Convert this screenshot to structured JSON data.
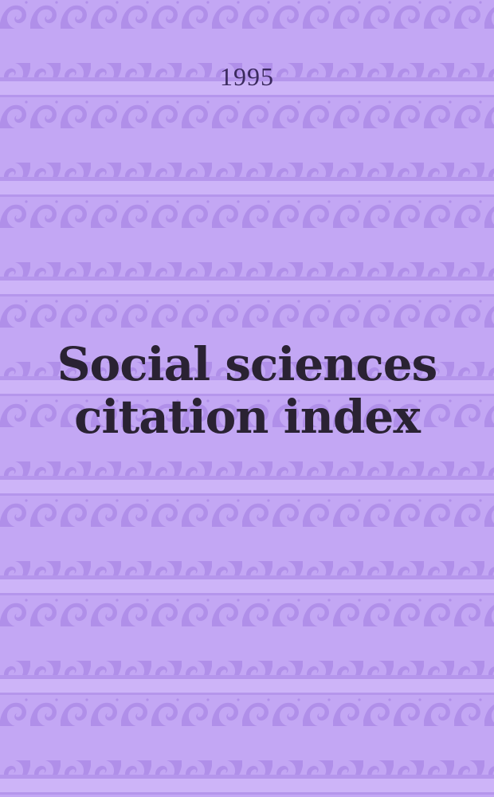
{
  "cover": {
    "year": "1995",
    "title_line1": "Social sciences",
    "title_line2": "citation index"
  },
  "colors": {
    "background": "#c3a7f4",
    "wave": "#b08fe9",
    "stripe": "#cdb4f8",
    "title_text": "#2a2233",
    "year_text": "#3b2a5e"
  }
}
